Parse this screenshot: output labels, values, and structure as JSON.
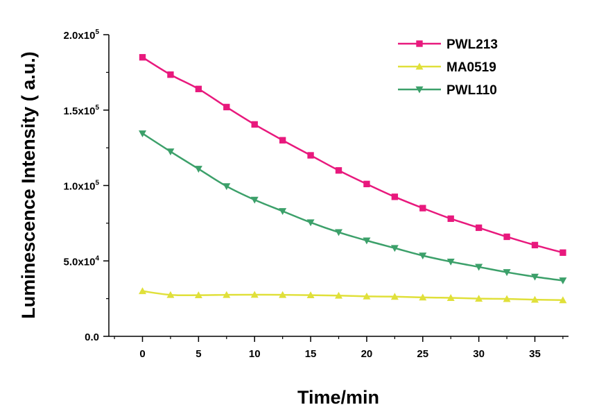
{
  "chart_data": {
    "type": "line",
    "title": "",
    "xlabel": "Time/min",
    "ylabel": "Luminescence Intensity ( a.u.)",
    "xlim": [
      -3,
      38
    ],
    "ylim": [
      0,
      200000
    ],
    "x_ticks": [
      0,
      5,
      10,
      15,
      20,
      25,
      30,
      35
    ],
    "x_tick_labels": [
      "0",
      "5",
      "10",
      "15",
      "20",
      "25",
      "30",
      "35"
    ],
    "y_ticks": [
      0,
      50000,
      100000,
      150000,
      200000
    ],
    "y_tick_labels": [
      {
        "base": "0.0",
        "exp": ""
      },
      {
        "base": "5.0x10",
        "exp": "4"
      },
      {
        "base": "1.0x10",
        "exp": "5"
      },
      {
        "base": "1.5x10",
        "exp": "5"
      },
      {
        "base": "2.0x10",
        "exp": "5"
      }
    ],
    "grid": false,
    "legend_position": "top-right",
    "x": [
      0,
      2.5,
      5,
      7.5,
      10,
      12.5,
      15,
      17.5,
      20,
      22.5,
      25,
      27.5,
      30,
      32.5,
      35,
      37.5
    ],
    "series": [
      {
        "name": "PWL213",
        "color": "#e8197d",
        "marker": "square",
        "values": [
          185000,
          173500,
          164000,
          152000,
          140500,
          130000,
          120000,
          110000,
          101000,
          92500,
          85000,
          78000,
          72000,
          66000,
          60500,
          55500
        ]
      },
      {
        "name": "MA0519",
        "color": "#e0e03a",
        "marker": "triangle-up",
        "values": [
          30000,
          27500,
          27300,
          27500,
          27600,
          27500,
          27300,
          27000,
          26500,
          26300,
          25800,
          25500,
          25000,
          24800,
          24300,
          24000
        ]
      },
      {
        "name": "PWL110",
        "color": "#3ca06a",
        "marker": "triangle-down",
        "values": [
          134500,
          122500,
          111000,
          99500,
          90500,
          83000,
          75500,
          69000,
          63500,
          58500,
          53500,
          49500,
          46000,
          42500,
          39500,
          37000
        ]
      }
    ]
  }
}
